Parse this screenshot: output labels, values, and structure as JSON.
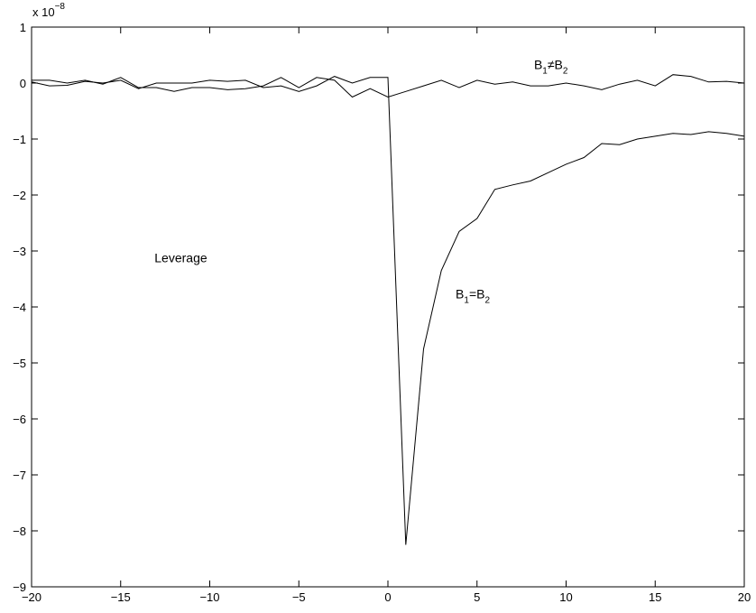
{
  "chart_data": {
    "type": "line",
    "title": "",
    "xlabel": "",
    "ylabel": "",
    "xlim": [
      -20,
      20
    ],
    "ylim": [
      -9,
      1
    ],
    "y_scale_label": {
      "base": "x 10",
      "exponent": "−8"
    },
    "x_ticks": [
      -20,
      -15,
      -10,
      -5,
      0,
      5,
      10,
      15,
      20
    ],
    "x_tick_labels": [
      "−20",
      "−15",
      "−10",
      "−5",
      "0",
      "5",
      "10",
      "15",
      "20"
    ],
    "y_ticks": [
      1,
      0,
      -1,
      -2,
      -3,
      -4,
      -5,
      -6,
      -7,
      -8,
      -9
    ],
    "y_tick_labels": [
      "1",
      "0",
      "−1",
      "−2",
      "−3",
      "−4",
      "−5",
      "−6",
      "−7",
      "−8",
      "−9"
    ],
    "grid": false,
    "series": [
      {
        "x": [
          -20,
          -19,
          -18,
          -17,
          -16,
          -15,
          -14,
          -13,
          -12,
          -11,
          -10,
          -9,
          -8,
          -7,
          -6,
          -5,
          -4,
          -3,
          -2,
          -1,
          0,
          1,
          2,
          3,
          4,
          5,
          6,
          7,
          8,
          9,
          10,
          11,
          12,
          13,
          14,
          15,
          16,
          17,
          18,
          19,
          20
        ],
        "values": [
          0.05,
          0.05,
          0.0,
          0.05,
          -0.02,
          0.1,
          -0.08,
          -0.08,
          -0.15,
          -0.08,
          -0.08,
          -0.12,
          -0.1,
          -0.05,
          0.1,
          -0.08,
          0.1,
          0.05,
          -0.25,
          -0.1,
          -0.25,
          -0.15,
          -0.05,
          0.05,
          -0.08,
          0.05,
          -0.02,
          0.02,
          -0.05,
          -0.05,
          0.0,
          -0.05,
          -0.12,
          -0.02,
          0.05,
          -0.05,
          0.15,
          0.12,
          0.02,
          0.03,
          0.0
        ]
      },
      {
        "x": [
          -20,
          -19,
          -18,
          -17,
          -16,
          -15,
          -14,
          -13,
          -12,
          -11,
          -10,
          -9,
          -8,
          -7,
          -6,
          -5,
          -4,
          -3,
          -2,
          -1,
          0,
          1,
          2,
          3,
          4,
          5,
          6,
          7,
          8,
          9,
          10,
          11,
          12,
          13,
          14,
          15,
          16,
          17,
          18,
          19,
          20
        ],
        "values": [
          0.02,
          -0.05,
          -0.04,
          0.03,
          0.0,
          0.05,
          -0.1,
          0.0,
          0.0,
          0.0,
          0.05,
          0.03,
          0.05,
          -0.08,
          -0.05,
          -0.15,
          -0.05,
          0.12,
          0.0,
          0.1,
          0.1,
          -8.25,
          -4.75,
          -3.35,
          -2.65,
          -2.42,
          -1.9,
          -1.82,
          -1.75,
          -1.6,
          -1.45,
          -1.33,
          -1.08,
          -1.1,
          -1.0,
          -0.95,
          -0.9,
          -0.92,
          -0.87,
          -0.9,
          -0.95
        ]
      }
    ],
    "annotations": [
      {
        "id": "neq",
        "x": 8.2,
        "y": 0.25,
        "b1": "B",
        "s1": "1",
        "op": "≠",
        "b2": "B",
        "s2": "2"
      },
      {
        "id": "eq",
        "x": 3.8,
        "y": -3.85,
        "b1": "B",
        "s1": "1",
        "op": "=",
        "b2": "B",
        "s2": "2"
      },
      {
        "id": "leverage",
        "x": -13.1,
        "y": -3.2,
        "text": "Leverage"
      }
    ],
    "colors": {
      "line": "#000000",
      "axis": "#000000",
      "background": "#ffffff"
    }
  }
}
